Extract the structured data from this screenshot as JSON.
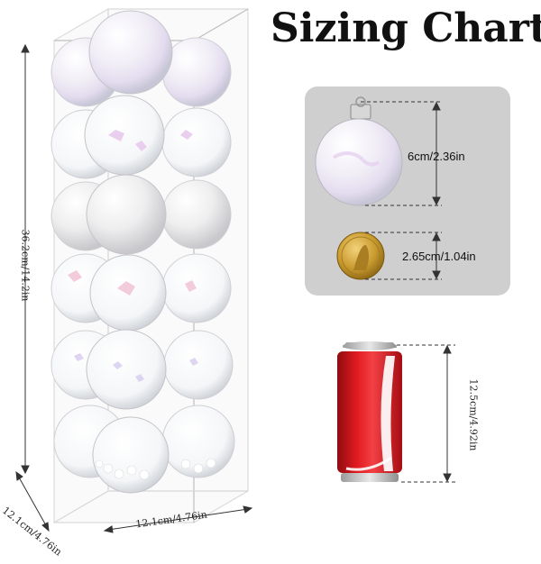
{
  "title": "Sizing Chart",
  "box": {
    "height_label": "36.2cm/14.2in",
    "depth_label": "12.1cm/4.76in",
    "width_label": "12.1cm/4.76in"
  },
  "ornament": {
    "diameter_label": "6cm/2.36in"
  },
  "coin": {
    "diameter_label": "2.65cm/1.04in"
  },
  "can": {
    "height_label": "12.5cm/4.92in"
  },
  "colors": {
    "panel": "#cfcfcf",
    "can_red": "#d9151b",
    "coin_gold": "#c99a2e"
  }
}
